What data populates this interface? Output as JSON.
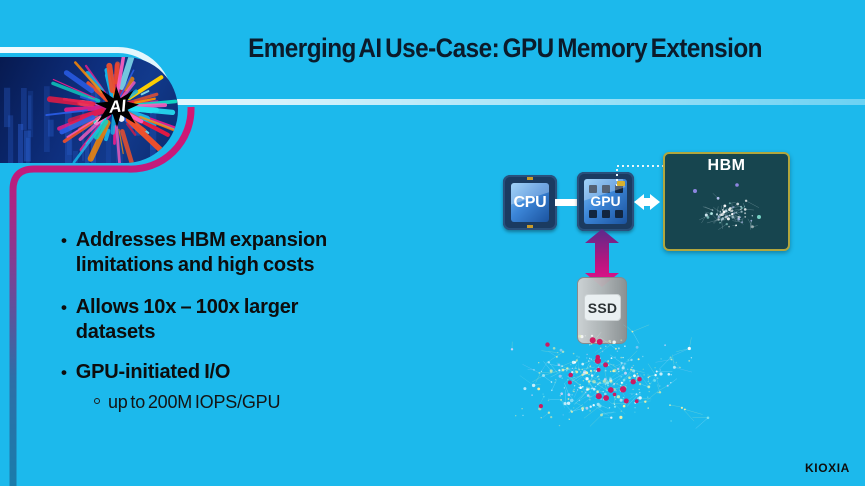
{
  "slide": {
    "title": "Emerging AI Use-Case: GPU Memory Extension",
    "brand_logo": "KIOXIA"
  },
  "hero": {
    "label": "AI"
  },
  "bullets": [
    {
      "lines": [
        "Addresses HBM expansion",
        "limitations and high costs"
      ]
    },
    {
      "lines": [
        "Allows 10x – 100x larger",
        "datasets"
      ]
    },
    {
      "lines": [
        "GPU-initiated I/O"
      ]
    }
  ],
  "sub_bullet": {
    "text": "up to 200M IOPS/GPU"
  },
  "diagram": {
    "cpu": {
      "label": "CPU"
    },
    "gpu": {
      "label": "GPU"
    },
    "hbm": {
      "label": "HBM"
    },
    "ssd": {
      "label": "SSD"
    }
  },
  "colors": {
    "background": "#1cb9ec",
    "accent_magenta": "#cb1977",
    "accent_pale_line": "#d9f1fb",
    "title_text": "#0b1b2b",
    "hbm_panel": "#17454f",
    "hbm_border": "#b1a63e",
    "crimson_dots": "#d4125c",
    "arrow_gradient_top": "#5b2b8c",
    "arrow_gradient_bottom": "#ee0e8b"
  }
}
